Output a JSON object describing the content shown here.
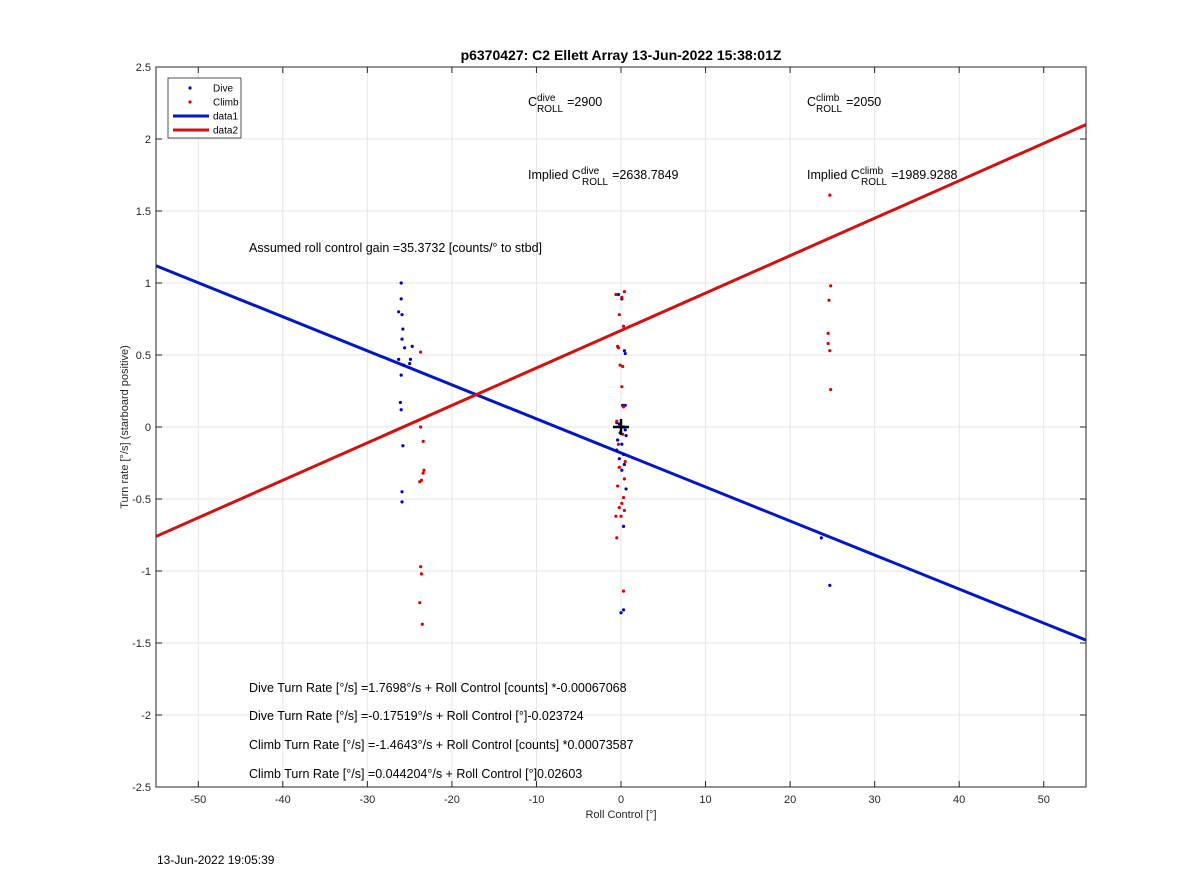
{
  "footer_timestamp": "13-Jun-2022 19:05:39",
  "chart_data": {
    "type": "scatter",
    "title": "p6370427: C2 Ellett Array 13-Jun-2022 15:38:01Z",
    "xlabel": "Roll Control [°]",
    "ylabel": "Turn rate [°/s] (starboard positive)",
    "xlim": [
      -55,
      55
    ],
    "ylim": [
      -2.5,
      2.5
    ],
    "xticks": [
      -50,
      -40,
      -30,
      -20,
      -10,
      0,
      10,
      20,
      30,
      40,
      50
    ],
    "yticks": [
      -2.5,
      -2,
      -1.5,
      -1,
      -0.5,
      0,
      0.5,
      1,
      1.5,
      2,
      2.5
    ],
    "xtick_labels": [
      "-50",
      "-40",
      "-30",
      "-20",
      "-10",
      "0",
      "10",
      "20",
      "30",
      "40",
      "50"
    ],
    "ytick_labels": [
      "-2.5",
      "-2",
      "-1.5",
      "-1",
      "-0.5",
      "0",
      "0.5",
      "1",
      "1.5",
      "2",
      "2.5"
    ],
    "grid": true,
    "legend_position": "top-left",
    "legend": [
      {
        "label": "Dive",
        "kind": "marker",
        "color": "#0000cc"
      },
      {
        "label": "Climb",
        "kind": "marker",
        "color": "#e00000"
      },
      {
        "label": "data1",
        "kind": "line",
        "color": "#0018c8"
      },
      {
        "label": "data2",
        "kind": "line",
        "color": "#d41010"
      }
    ],
    "series": [
      {
        "name": "Dive",
        "kind": "points",
        "color": "#0000cc",
        "points": [
          [
            -26,
            1.0
          ],
          [
            -26,
            0.89
          ],
          [
            -26.3,
            0.8
          ],
          [
            -25.9,
            0.78
          ],
          [
            -25.8,
            0.68
          ],
          [
            -25.9,
            0.61
          ],
          [
            -25.6,
            0.55
          ],
          [
            -24.7,
            0.56
          ],
          [
            -24.9,
            0.47
          ],
          [
            -25,
            0.44
          ],
          [
            -26.3,
            0.47
          ],
          [
            -25.7,
            0.43
          ],
          [
            -26,
            0.36
          ],
          [
            -26.1,
            0.17
          ],
          [
            -26,
            0.12
          ],
          [
            -25.8,
            -0.13
          ],
          [
            -25.9,
            -0.45
          ],
          [
            -25.9,
            -0.52
          ],
          [
            -0.3,
            0.92
          ],
          [
            0.1,
            0.89
          ],
          [
            0.4,
            0.53
          ],
          [
            0.5,
            0.51
          ],
          [
            0.2,
            0.15
          ],
          [
            0.5,
            0.15
          ],
          [
            -0.5,
            0.03
          ],
          [
            -0.2,
            0.02
          ],
          [
            0.3,
            0.0
          ],
          [
            0.5,
            -0.02
          ],
          [
            -0.1,
            -0.04
          ],
          [
            0.6,
            -0.06
          ],
          [
            -0.4,
            -0.09
          ],
          [
            0.1,
            -0.12
          ],
          [
            -0.5,
            -0.16
          ],
          [
            0.3,
            -0.19
          ],
          [
            -0.2,
            -0.22
          ],
          [
            0.4,
            -0.26
          ],
          [
            0.1,
            -0.3
          ],
          [
            0.6,
            -0.43
          ],
          [
            0.3,
            -0.69
          ],
          [
            0.3,
            -1.27
          ],
          [
            0.0,
            -1.29
          ],
          [
            23.7,
            -0.77
          ],
          [
            24.7,
            -1.1
          ]
        ]
      },
      {
        "name": "Climb",
        "kind": "points",
        "color": "#e00000",
        "points": [
          [
            -23.7,
            0.52
          ],
          [
            -23.7,
            0.0
          ],
          [
            -23.4,
            -0.1
          ],
          [
            -23.3,
            -0.3
          ],
          [
            -23.4,
            -0.32
          ],
          [
            -23.6,
            -0.37
          ],
          [
            -23.8,
            -0.38
          ],
          [
            -23.7,
            -0.97
          ],
          [
            -23.6,
            -1.02
          ],
          [
            -23.8,
            -1.22
          ],
          [
            -23.5,
            -1.37
          ],
          [
            -0.6,
            0.92
          ],
          [
            0.4,
            0.94
          ],
          [
            0.1,
            0.9
          ],
          [
            -0.2,
            0.78
          ],
          [
            0.3,
            0.7
          ],
          [
            -0.4,
            0.56
          ],
          [
            -0.3,
            0.55
          ],
          [
            -0.1,
            0.43
          ],
          [
            0.2,
            0.42
          ],
          [
            0.1,
            0.28
          ],
          [
            0.3,
            0.14
          ],
          [
            -0.5,
            0.04
          ],
          [
            0.2,
            -0.05
          ],
          [
            -0.3,
            -0.12
          ],
          [
            0.5,
            -0.24
          ],
          [
            -0.2,
            -0.28
          ],
          [
            0.4,
            -0.36
          ],
          [
            -0.4,
            -0.41
          ],
          [
            0.3,
            -0.49
          ],
          [
            0.1,
            -0.53
          ],
          [
            -0.2,
            -0.56
          ],
          [
            0.4,
            -0.58
          ],
          [
            -0.6,
            -0.62
          ],
          [
            0.0,
            -0.62
          ],
          [
            -0.5,
            -0.77
          ],
          [
            0.3,
            -1.14
          ],
          [
            24.7,
            1.61
          ],
          [
            24.8,
            0.98
          ],
          [
            24.6,
            0.88
          ],
          [
            24.5,
            0.65
          ],
          [
            24.5,
            0.58
          ],
          [
            24.7,
            0.53
          ],
          [
            24.8,
            0.26
          ]
        ]
      },
      {
        "name": "data1",
        "kind": "line",
        "color": "#0018c8",
        "slope": -0.023724,
        "intercept": -0.17519,
        "x": [
          -55,
          55
        ],
        "y": [
          1.12,
          -1.48
        ]
      },
      {
        "name": "data2",
        "kind": "line",
        "color": "#d41010",
        "slope": 0.02603,
        "intercept": 0.044204,
        "x": [
          -55,
          55
        ],
        "y": [
          -0.76,
          2.1
        ]
      }
    ],
    "marker": {
      "kind": "plus",
      "x": 0,
      "y": 0,
      "color": "#000000"
    },
    "annotations": {
      "c_roll_dive": {
        "base": "C",
        "sup": "dive",
        "sub": "ROLL",
        "value": "=2900"
      },
      "c_roll_climb": {
        "base": "C",
        "sup": "climb",
        "sub": "ROLL",
        "value": "=2050"
      },
      "implied_dive": {
        "prefix": "Implied ",
        "base": "C",
        "sup": "dive",
        "sub": "ROLL",
        "value": "=2638.7849"
      },
      "implied_climb": {
        "prefix": "Implied ",
        "base": "C",
        "sup": "climb",
        "sub": "ROLL",
        "value": "=1989.9288"
      },
      "gain": "Assumed roll control gain =35.3732 [counts/° to stbd]",
      "eq1": "Dive Turn Rate [°/s] =1.7698°/s + Roll Control [counts] *-0.00067068",
      "eq2": "Dive Turn Rate [°/s] =-0.17519°/s + Roll Control [°]-0.023724",
      "eq3": "Climb Turn Rate [°/s] =-1.4643°/s + Roll Control [counts] *0.00073587",
      "eq4": "Climb Turn Rate [°/s] =0.044204°/s + Roll Control [°]0.02603"
    }
  }
}
